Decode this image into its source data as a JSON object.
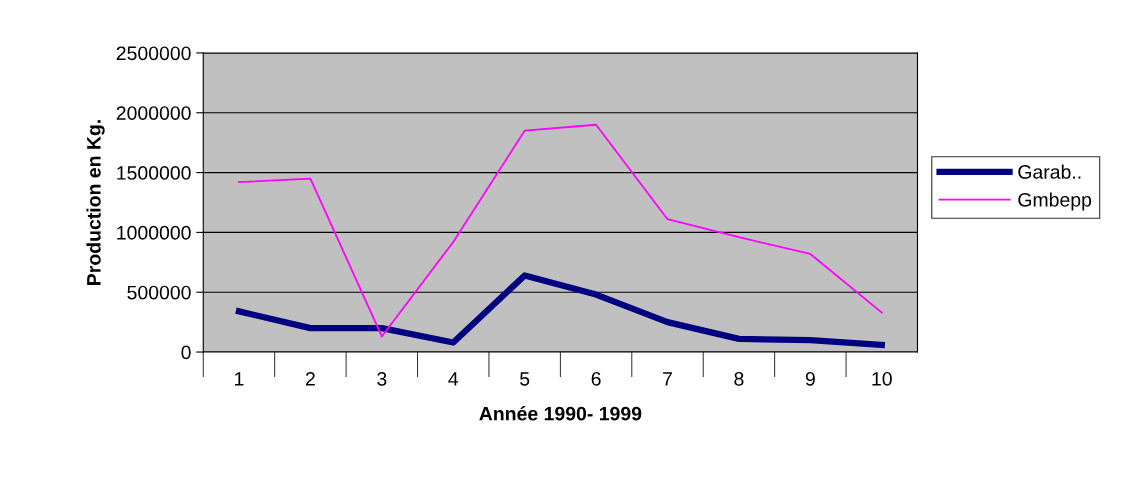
{
  "chart_data": {
    "type": "line",
    "xlabel": "Année 1990- 1999",
    "ylabel": "Production en Kg.",
    "categories": [
      "1",
      "2",
      "3",
      "4",
      "5",
      "6",
      "7",
      "8",
      "9",
      "10"
    ],
    "series": [
      {
        "name": "Garab..",
        "color": "#000080",
        "values": [
          340000,
          200000,
          200000,
          80000,
          640000,
          480000,
          250000,
          110000,
          100000,
          60000
        ]
      },
      {
        "name": "Gmbepp",
        "color": "#ff00ff",
        "values": [
          1420000,
          1450000,
          130000,
          920000,
          1850000,
          1900000,
          1110000,
          960000,
          820000,
          330000
        ]
      }
    ],
    "ylim": [
      0,
      2500000
    ],
    "yticks": [
      0,
      500000,
      1000000,
      1500000,
      2000000,
      2500000
    ],
    "grid": "y",
    "legend": "right",
    "marker": "none",
    "line_style": "solid"
  }
}
